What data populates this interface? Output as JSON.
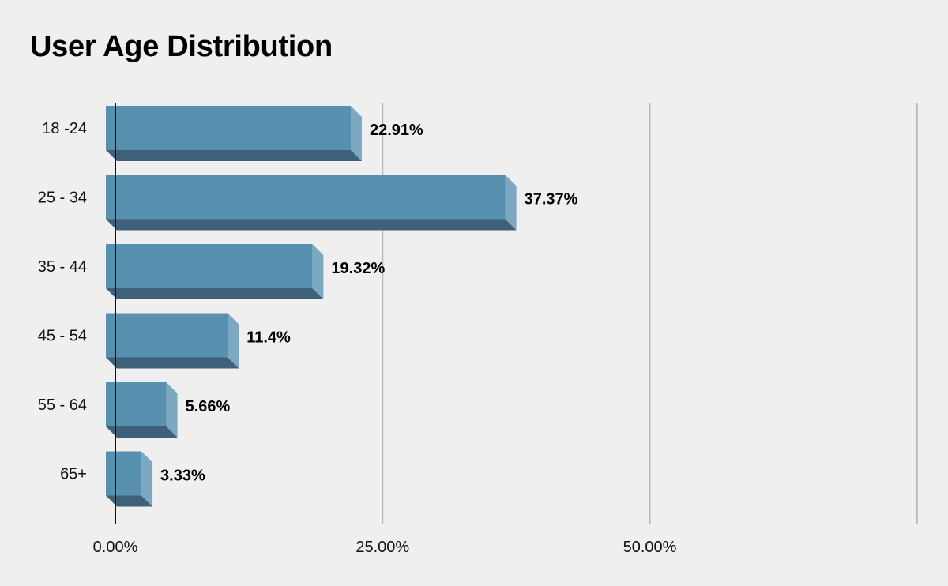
{
  "chart_data": {
    "type": "bar",
    "orientation": "horizontal",
    "title": "User Age Distribution",
    "xlabel": "",
    "ylabel": "",
    "categories": [
      "18 -24",
      "25 - 34",
      "35 - 44",
      "45 - 54",
      "55 - 64",
      "65+"
    ],
    "values": [
      22.91,
      37.37,
      19.32,
      11.4,
      5.66,
      3.33
    ],
    "data_labels": [
      "22.91%",
      "37.37%",
      "19.32%",
      "11.4%",
      "5.66%",
      "3.33%"
    ],
    "x_ticks": [
      0,
      25,
      50,
      75
    ],
    "x_tick_labels": [
      "0.00%",
      "25.00%",
      "50.00%",
      ""
    ],
    "xlim": [
      0,
      75
    ],
    "grid": true,
    "colors": {
      "bar_front": "#5891b0",
      "bar_side": "#7da8c2",
      "bar_bottom": "#3e6078",
      "gridline": "#b8b8b8",
      "axis": "#111111",
      "background": "#f0eff0"
    }
  }
}
